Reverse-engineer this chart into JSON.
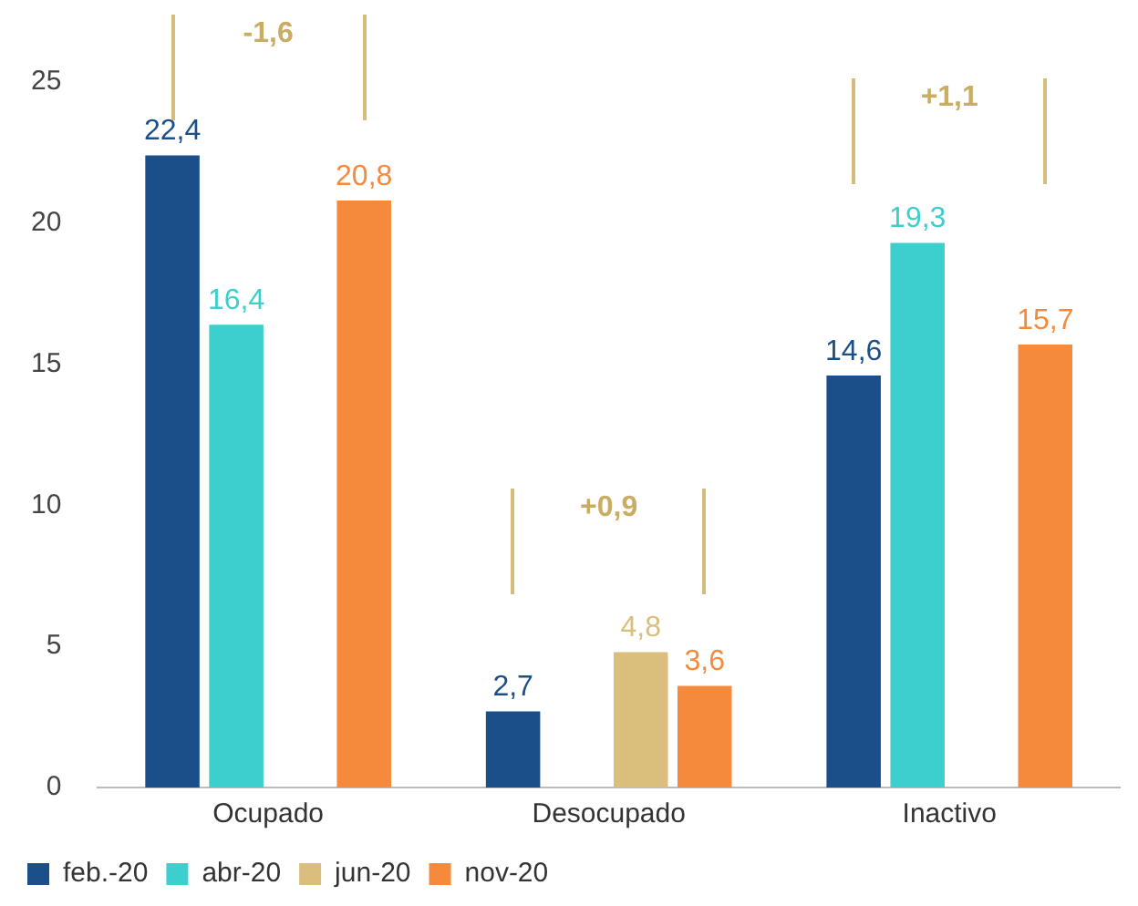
{
  "chart_data": {
    "type": "bar",
    "categories": [
      "Ocupado",
      "Desocupado",
      "Inactivo"
    ],
    "series": [
      {
        "name": "feb.-20",
        "color": "#1b4f8a",
        "values": [
          22.4,
          2.7,
          14.6
        ],
        "value_labels": [
          "22,4",
          "2,7",
          "14,6"
        ]
      },
      {
        "name": "abr-20",
        "color": "#3dcfcd",
        "values": [
          16.4,
          null,
          19.3
        ],
        "value_labels": [
          "16,4",
          null,
          "19,3"
        ]
      },
      {
        "name": "jun-20",
        "color": "#d9bf7b",
        "values": [
          null,
          4.8,
          null
        ],
        "value_labels": [
          null,
          "4,8",
          null
        ]
      },
      {
        "name": "nov-20",
        "color": "#f58a3d",
        "values": [
          20.8,
          3.6,
          15.7
        ],
        "value_labels": [
          "20,8",
          "3,6",
          "15,7"
        ]
      }
    ],
    "ylim": [
      0,
      25
    ],
    "yticks": [
      0,
      5,
      10,
      15,
      20,
      25
    ],
    "grid": false,
    "legend": "bottom",
    "annotations": [
      "-1,6",
      "+0,9",
      "+1,1"
    ]
  }
}
